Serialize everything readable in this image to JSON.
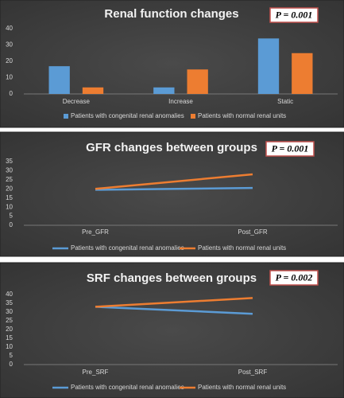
{
  "chart_data": [
    {
      "type": "bar",
      "title": "Renal function changes",
      "annotation": "P = 0.001",
      "categories": [
        "Decrease",
        "Increase",
        "Static"
      ],
      "series": [
        {
          "name": "Patients with congenital renal anomalies",
          "color": "#5b9bd5",
          "values": [
            17,
            4,
            34
          ]
        },
        {
          "name": "Patients with normal renal units",
          "color": "#ed7d31",
          "values": [
            4,
            15,
            25
          ]
        }
      ],
      "ylim": [
        0,
        40
      ],
      "yticks": [
        0,
        10,
        20,
        30,
        40
      ]
    },
    {
      "type": "line",
      "title": "GFR changes between groups",
      "annotation": "P = 0.001",
      "categories": [
        "Pre_GFR",
        "Post_GFR"
      ],
      "series": [
        {
          "name": "Patients with congenital renal anomalies",
          "color": "#5b9bd5",
          "values": [
            19.5,
            20.5
          ]
        },
        {
          "name": "Patients with normal renal units",
          "color": "#ed7d31",
          "values": [
            20,
            28
          ]
        }
      ],
      "ylim": [
        0,
        35
      ],
      "yticks": [
        0,
        5,
        10,
        15,
        20,
        25,
        30,
        35
      ]
    },
    {
      "type": "line",
      "title": "SRF changes between groups",
      "annotation": "P = 0.002",
      "categories": [
        "Pre_SRF",
        "Post_SRF"
      ],
      "series": [
        {
          "name": "Patients with congenital renal anomalies",
          "color": "#5b9bd5",
          "values": [
            33,
            29
          ]
        },
        {
          "name": "Patients with normal renal units",
          "color": "#ed7d31",
          "values": [
            33,
            38
          ]
        }
      ],
      "ylim": [
        0,
        40
      ],
      "yticks": [
        0,
        5,
        10,
        15,
        20,
        25,
        30,
        35,
        40
      ]
    }
  ]
}
